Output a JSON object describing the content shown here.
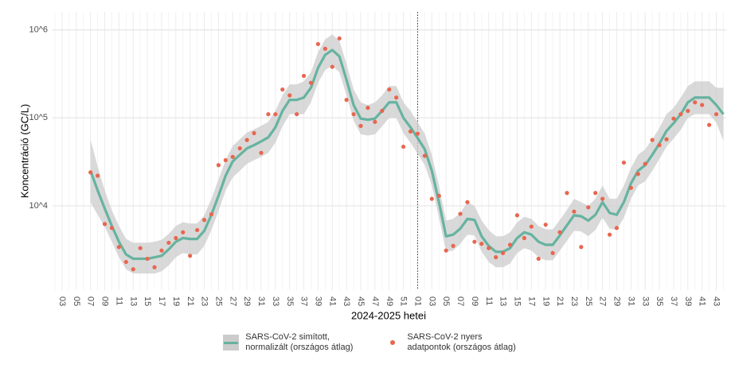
{
  "chart_data": {
    "type": "line",
    "ylabel": "Koncentráció (GC/L)",
    "xlabel": "2024-2025 hetei",
    "log_y": true,
    "grid": true,
    "ylim": [
      1100,
      1600000
    ],
    "yticks": [
      {
        "value": 10000,
        "label": "10^4"
      },
      {
        "value": 100000,
        "label": "10^5"
      },
      {
        "value": 1000000,
        "label": "10^6"
      }
    ],
    "vline_category": 51,
    "band_color": "#cccccc",
    "legend": "bottom",
    "categories": [
      null,
      "03",
      null,
      "05",
      null,
      "07",
      null,
      "09",
      null,
      "11",
      null,
      "13",
      null,
      "15",
      null,
      "17",
      null,
      "19",
      null,
      "21",
      null,
      "23",
      null,
      "25",
      null,
      "27",
      null,
      "29",
      null,
      "31",
      null,
      "33",
      null,
      "35",
      null,
      "37",
      null,
      "39",
      null,
      "41",
      null,
      "43",
      null,
      "45",
      null,
      "47",
      null,
      "49",
      null,
      "51",
      null,
      "01",
      null,
      "03",
      null,
      "05",
      null,
      "07",
      null,
      "09",
      null,
      "11",
      null,
      "13",
      null,
      "15",
      null,
      "17",
      null,
      "19",
      null,
      "21",
      null,
      "23",
      null,
      "25",
      null,
      "27",
      null,
      "29",
      null,
      "31",
      null,
      "33",
      null,
      "35",
      null,
      "37",
      null,
      "39",
      null,
      "41",
      null,
      "43",
      null
    ],
    "series": [
      {
        "name": "SARS-CoV-2 simított,\nnormalizált (országos átlag)",
        "color": "#66b3a0",
        "mark": "line",
        "values": [
          null,
          null,
          null,
          null,
          null,
          25000,
          15000,
          9300,
          5900,
          3900,
          2800,
          2500,
          2500,
          2500,
          2600,
          2700,
          3200,
          3900,
          4300,
          4200,
          4200,
          5200,
          7900,
          13000,
          22000,
          32000,
          38000,
          45000,
          49000,
          54000,
          60000,
          78000,
          120000,
          160000,
          160000,
          170000,
          220000,
          370000,
          520000,
          590000,
          500000,
          270000,
          140000,
          98000,
          95000,
          98000,
          120000,
          150000,
          150000,
          100000,
          78000,
          59000,
          44000,
          25000,
          11000,
          4500,
          4700,
          5500,
          7100,
          6900,
          4500,
          3500,
          3000,
          3000,
          3300,
          4300,
          5000,
          4700,
          3900,
          3600,
          3600,
          4600,
          6000,
          7800,
          7600,
          6800,
          7900,
          11000,
          8300,
          7900,
          11000,
          18000,
          25000,
          29000,
          38000,
          51000,
          71000,
          87000,
          110000,
          150000,
          170000,
          170000,
          170000,
          140000,
          110000
        ],
        "lower": [
          null,
          null,
          null,
          null,
          null,
          11000,
          7900,
          5800,
          3900,
          2600,
          1900,
          1700,
          1700,
          1700,
          1700,
          1800,
          2100,
          2600,
          2900,
          2800,
          2800,
          3500,
          5300,
          8700,
          15000,
          21000,
          25000,
          30000,
          33000,
          36000,
          40000,
          52000,
          80000,
          110000,
          110000,
          110000,
          150000,
          250000,
          350000,
          390000,
          330000,
          180000,
          93000,
          65000,
          63000,
          65000,
          80000,
          100000,
          100000,
          67000,
          52000,
          39000,
          29000,
          17000,
          7300,
          3000,
          3100,
          3700,
          4700,
          4600,
          3000,
          2300,
          2000,
          2000,
          2200,
          2900,
          3300,
          3100,
          2600,
          2400,
          2400,
          3100,
          4000,
          5200,
          5100,
          4500,
          5300,
          7300,
          5500,
          5300,
          7300,
          12000,
          17000,
          19000,
          25000,
          34000,
          47000,
          58000,
          73000,
          100000,
          110000,
          110000,
          110000,
          88000,
          55000
        ],
        "upper": [
          null,
          null,
          null,
          null,
          null,
          57000,
          28000,
          15000,
          8900,
          5900,
          4200,
          3800,
          3800,
          3800,
          3900,
          4100,
          4800,
          5900,
          6500,
          6300,
          6300,
          7800,
          12000,
          20000,
          33000,
          48000,
          57000,
          68000,
          74000,
          81000,
          90000,
          120000,
          180000,
          240000,
          240000,
          260000,
          330000,
          560000,
          780000,
          890000,
          750000,
          410000,
          210000,
          150000,
          140000,
          150000,
          180000,
          230000,
          230000,
          150000,
          120000,
          89000,
          66000,
          38000,
          17000,
          6800,
          7100,
          8300,
          11000,
          10000,
          6800,
          5300,
          4500,
          4500,
          5000,
          6500,
          7500,
          7100,
          5900,
          5400,
          5400,
          6900,
          9000,
          12000,
          11000,
          10000,
          12000,
          17000,
          12000,
          12000,
          17000,
          27000,
          38000,
          44000,
          57000,
          77000,
          110000,
          130000,
          170000,
          230000,
          260000,
          260000,
          260000,
          220000,
          220000
        ]
      },
      {
        "name": "SARS-CoV-2 nyers\n adatpontok (országos átlag)",
        "color": "#e8664f",
        "mark": "point",
        "values": [
          null,
          null,
          null,
          null,
          null,
          24000,
          22000,
          6200,
          5600,
          3400,
          2300,
          1900,
          3300,
          2500,
          2000,
          3100,
          3800,
          4300,
          5000,
          2700,
          5300,
          6900,
          8000,
          29000,
          33000,
          36000,
          45000,
          56000,
          67000,
          40000,
          110000,
          110000,
          210000,
          180000,
          110000,
          300000,
          250000,
          690000,
          610000,
          380000,
          800000,
          160000,
          110000,
          81000,
          130000,
          90000,
          120000,
          210000,
          170000,
          47000,
          70000,
          66000,
          37000,
          12000,
          13000,
          3100,
          3500,
          8100,
          11000,
          3900,
          3700,
          3300,
          2600,
          2900,
          3600,
          7800,
          4300,
          5800,
          2500,
          6100,
          2900,
          5000,
          14000,
          8600,
          3400,
          9600,
          14000,
          12000,
          4700,
          5600,
          31000,
          16000,
          23000,
          30000,
          56000,
          49000,
          57000,
          98000,
          110000,
          120000,
          150000,
          140000,
          83000,
          110000,
          null
        ]
      }
    ]
  }
}
